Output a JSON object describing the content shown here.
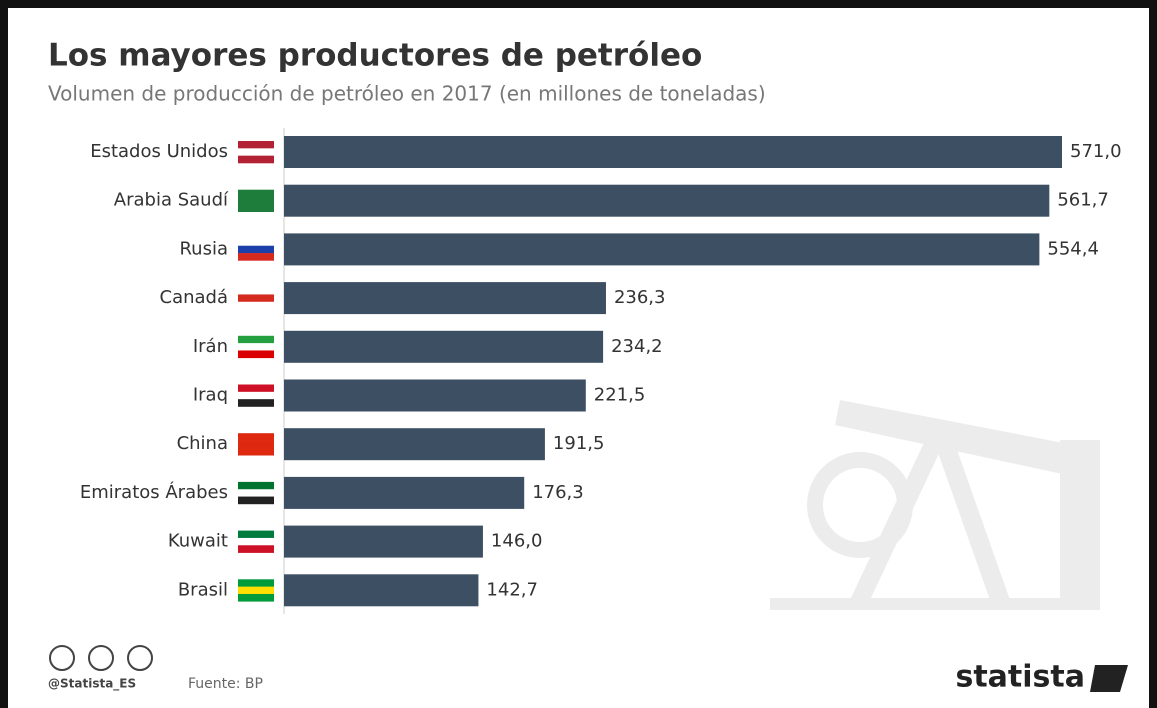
{
  "chart_data": {
    "type": "bar",
    "orientation": "horizontal",
    "title": "Los mayores productores de petróleo",
    "subtitle": "Volumen de producción de petróleo en 2017 (en millones de toneladas)",
    "categories": [
      "Estados Unidos",
      "Arabia Saudí",
      "Rusia",
      "Canadá",
      "Irán",
      "Iraq",
      "China",
      "Emiratos Árabes",
      "Kuwait",
      "Brasil"
    ],
    "values": [
      571.0,
      561.7,
      554.4,
      236.3,
      234.2,
      221.5,
      191.5,
      176.3,
      146.0,
      142.7
    ],
    "value_labels": [
      "571,0",
      "561,7",
      "554,4",
      "236,3",
      "234,2",
      "221,5",
      "191,5",
      "176,3",
      "146,0",
      "142,7"
    ],
    "color": "#3d4f63",
    "credit": "@Statista_ES",
    "source": "Fuente: BP",
    "brand": "statista"
  }
}
